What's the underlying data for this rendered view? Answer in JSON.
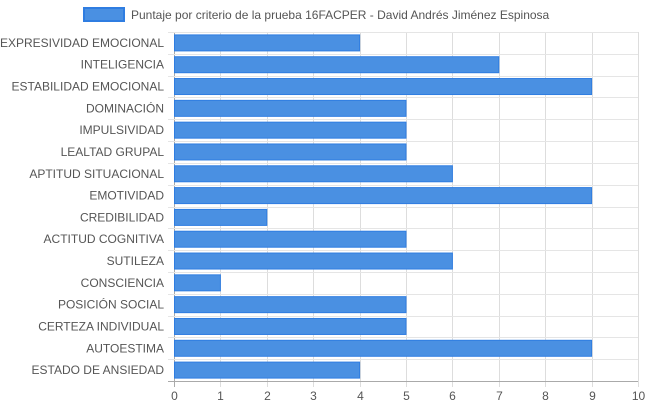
{
  "chart_data": {
    "type": "bar",
    "orientation": "horizontal",
    "categories": [
      "EXPRESIVIDAD EMOCIONAL",
      "INTELIGENCIA",
      "ESTABILIDAD EMOCIONAL",
      "DOMINACIÓN",
      "IMPULSIVIDAD",
      "LEALTAD GRUPAL",
      "APTITUD SITUACIONAL",
      "EMOTIVIDAD",
      "CREDIBILIDAD",
      "ACTITUD COGNITIVA",
      "SUTILEZA",
      "CONSCIENCIA",
      "POSICIÓN SOCIAL",
      "CERTEZA INDIVIDUAL",
      "AUTOESTIMA",
      "ESTADO DE ANSIEDAD"
    ],
    "series": [
      {
        "name": "Puntaje por criterio de la prueba 16FACPER - David Andrés Jiménez Espinosa",
        "values": [
          4,
          7,
          9,
          5,
          5,
          5,
          6,
          9,
          2,
          5,
          6,
          1,
          5,
          5,
          9,
          4
        ],
        "color": "#4a90e2",
        "border_color": "#2f7de1"
      }
    ],
    "xlim": [
      0,
      10
    ],
    "xticks": [
      "0",
      "1",
      "2",
      "3",
      "4",
      "5",
      "6",
      "7",
      "8",
      "9",
      "10"
    ],
    "legend_position": "top-center",
    "grid": true
  }
}
